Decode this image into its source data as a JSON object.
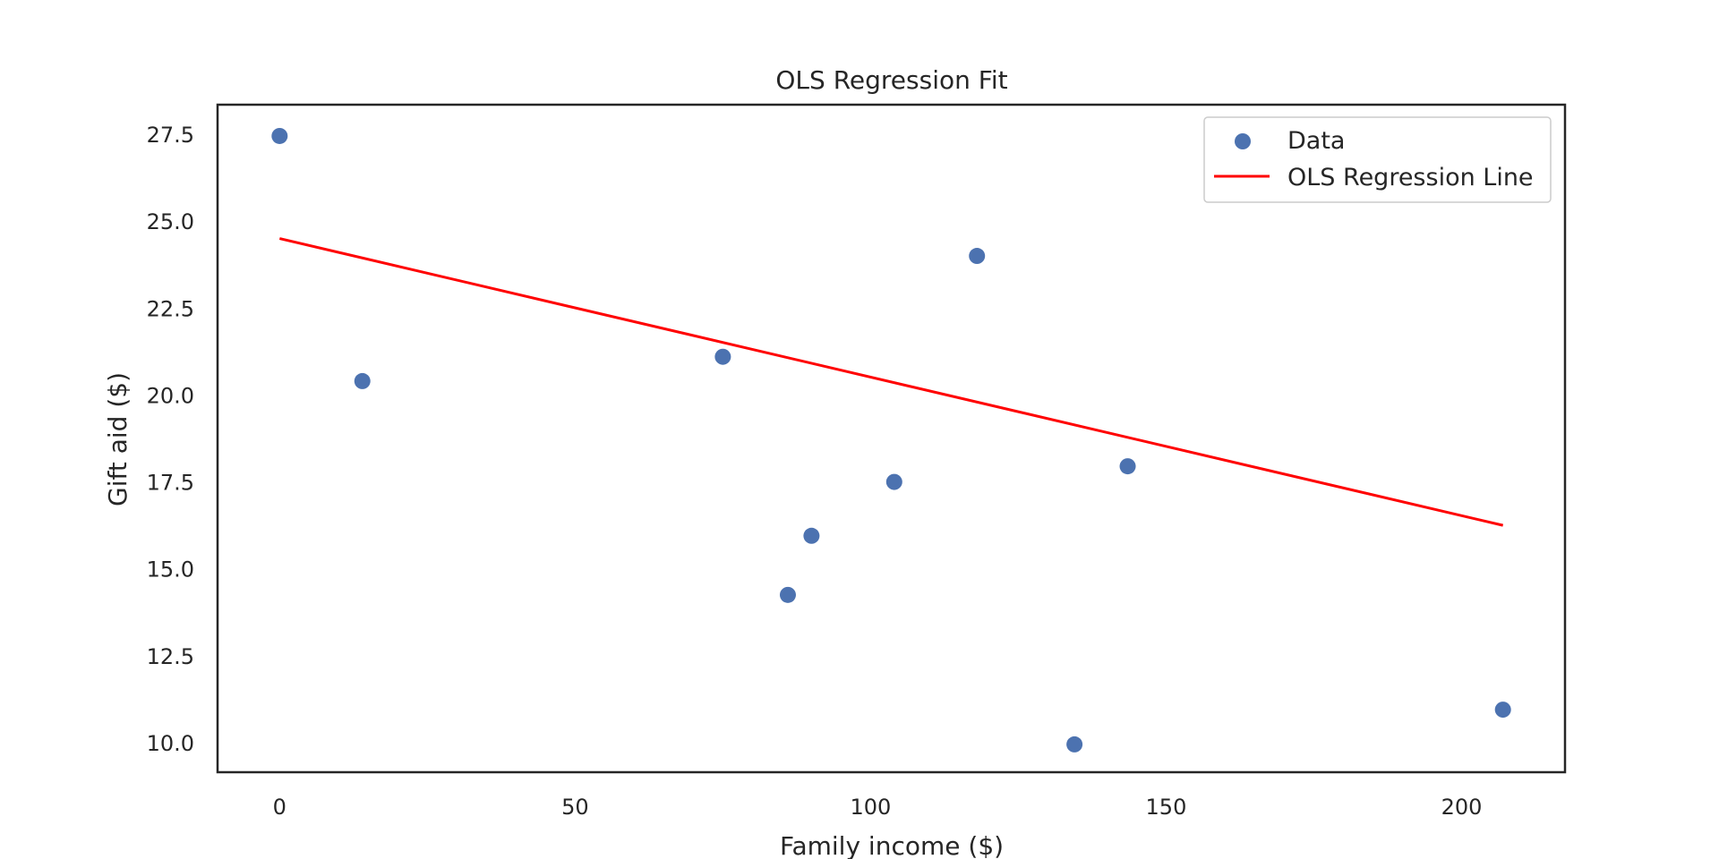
{
  "chart_data": {
    "type": "scatter",
    "title": "OLS Regression Fit",
    "xlabel": "Family income ($)",
    "ylabel": "Gift aid ($)",
    "xlim": [
      -10.5,
      217.5
    ],
    "ylim": [
      9.15,
      28.35
    ],
    "xticks": [
      0,
      50,
      100,
      150,
      200
    ],
    "yticks": [
      10.0,
      12.5,
      15.0,
      17.5,
      20.0,
      22.5,
      25.0,
      27.5
    ],
    "grid": false,
    "legend_position": "top-right",
    "series": [
      {
        "name": "Data",
        "kind": "scatter",
        "color": "#4c72b0",
        "x": [
          0,
          14,
          75,
          90,
          86,
          104,
          118,
          134.5,
          143.5,
          207
        ],
        "y": [
          27.45,
          20.4,
          21.1,
          15.95,
          14.25,
          17.5,
          24.0,
          9.95,
          17.95,
          10.95
        ]
      },
      {
        "name": "OLS Regression Line",
        "kind": "line",
        "color": "#ff0000",
        "x": [
          0,
          207
        ],
        "y": [
          24.5,
          16.25
        ]
      }
    ]
  }
}
